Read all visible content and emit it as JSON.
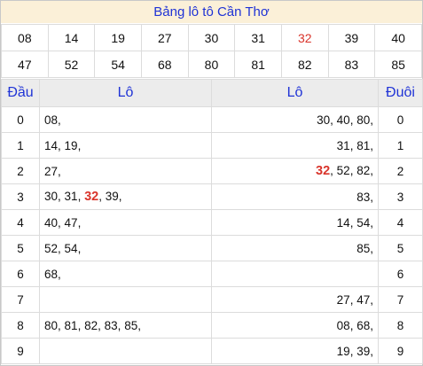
{
  "title": "Bảng lô tô Cần Thơ",
  "numbers_row1": [
    "08",
    "14",
    "19",
    "27",
    "30",
    "31",
    "32",
    "39",
    "40"
  ],
  "numbers_row2": [
    "47",
    "52",
    "54",
    "68",
    "80",
    "81",
    "82",
    "83",
    "85"
  ],
  "highlight": "32",
  "header": {
    "dau": "Đầu",
    "lo_left": "Lô",
    "lo_right": "Lô",
    "duoi": "Đuôi"
  },
  "rows": [
    {
      "digit": "0",
      "dau_list": [
        "08"
      ],
      "duoi_list": [
        "30",
        "40",
        "80"
      ]
    },
    {
      "digit": "1",
      "dau_list": [
        "14",
        "19"
      ],
      "duoi_list": [
        "31",
        "81"
      ]
    },
    {
      "digit": "2",
      "dau_list": [
        "27"
      ],
      "duoi_list": [
        "32",
        "52",
        "82"
      ]
    },
    {
      "digit": "3",
      "dau_list": [
        "30",
        "31",
        "32",
        "39"
      ],
      "duoi_list": [
        "83"
      ]
    },
    {
      "digit": "4",
      "dau_list": [
        "40",
        "47"
      ],
      "duoi_list": [
        "14",
        "54"
      ]
    },
    {
      "digit": "5",
      "dau_list": [
        "52",
        "54"
      ],
      "duoi_list": [
        "85"
      ]
    },
    {
      "digit": "6",
      "dau_list": [
        "68"
      ],
      "duoi_list": []
    },
    {
      "digit": "7",
      "dau_list": [],
      "duoi_list": [
        "27",
        "47"
      ]
    },
    {
      "digit": "8",
      "dau_list": [
        "80",
        "81",
        "82",
        "83",
        "85"
      ],
      "duoi_list": [
        "08",
        "68"
      ]
    },
    {
      "digit": "9",
      "dau_list": [],
      "duoi_list": [
        "19",
        "39"
      ]
    }
  ],
  "colors": {
    "title_bg": "#fbf0d8",
    "title_text": "#1f33d6",
    "header_bg": "#ececec",
    "accent_red": "#d9342b"
  }
}
